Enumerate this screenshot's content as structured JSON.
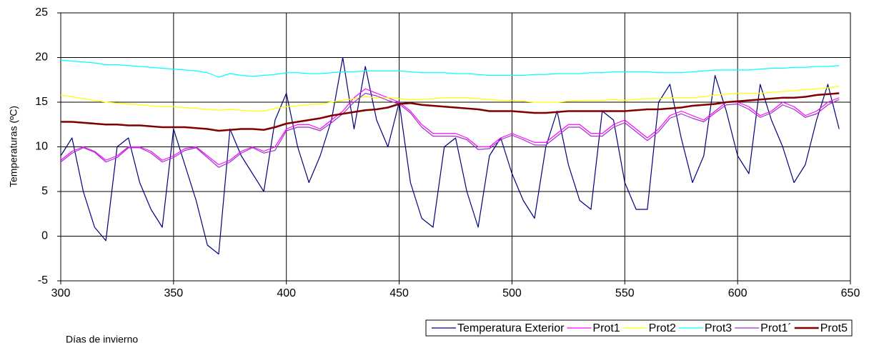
{
  "chart_data": {
    "type": "line",
    "xlabel": "Días de invierno",
    "ylabel": "Temperaturas (ºC)",
    "x": [
      300,
      305,
      310,
      315,
      320,
      325,
      330,
      335,
      340,
      345,
      350,
      355,
      360,
      365,
      370,
      375,
      380,
      385,
      390,
      395,
      400,
      405,
      410,
      415,
      420,
      425,
      430,
      435,
      440,
      445,
      450,
      455,
      460,
      465,
      470,
      475,
      480,
      485,
      490,
      495,
      500,
      505,
      510,
      515,
      520,
      525,
      530,
      535,
      540,
      545,
      550,
      555,
      560,
      565,
      570,
      575,
      580,
      585,
      590,
      595,
      600,
      605,
      610,
      615,
      620,
      625,
      630,
      635,
      640,
      645
    ],
    "series": [
      {
        "name": "Temperatura Exterior",
        "color": "#000080",
        "values": [
          9,
          11,
          5,
          1,
          -0.5,
          10,
          11,
          6,
          3,
          1,
          12,
          8,
          4,
          -1,
          -2,
          12,
          9,
          7,
          5,
          13,
          16,
          10,
          6,
          9,
          13,
          20,
          12,
          19,
          13,
          10,
          15,
          6,
          2,
          1,
          10,
          11,
          5,
          1,
          9,
          11,
          7,
          4,
          2,
          10,
          14,
          8,
          4,
          3,
          14,
          13,
          6,
          3,
          3,
          15,
          17,
          11,
          6,
          9,
          18,
          14,
          9,
          7,
          17,
          13,
          10,
          6,
          8,
          13,
          17,
          12
        ]
      },
      {
        "name": "Prot1",
        "color": "#ff00ff",
        "values": [
          8.5,
          9.5,
          10,
          9.5,
          8.5,
          9,
          10,
          10,
          9.5,
          8.5,
          9,
          9.8,
          10,
          9,
          8,
          8.5,
          9.5,
          10,
          9.5,
          10,
          12,
          12.5,
          12.5,
          12,
          13,
          14,
          15.5,
          16.5,
          16,
          15.5,
          15,
          14,
          12.5,
          11.5,
          11.5,
          11.5,
          11,
          10,
          10,
          11,
          11.5,
          11,
          10.5,
          10.5,
          11.5,
          12.5,
          12.5,
          11.5,
          11.5,
          12.5,
          13,
          12,
          11,
          12,
          13.5,
          14,
          13.5,
          13,
          14,
          15,
          15,
          14.5,
          13.5,
          14,
          15,
          14.5,
          13.5,
          14,
          15,
          15.5
        ]
      },
      {
        "name": "Prot2",
        "color": "#ffff00",
        "values": [
          15.8,
          15.6,
          15.4,
          15.2,
          15.0,
          14.9,
          14.8,
          14.7,
          14.6,
          14.5,
          14.5,
          14.4,
          14.3,
          14.2,
          14.1,
          14.2,
          14.1,
          14.0,
          14.0,
          14.3,
          14.5,
          14.6,
          14.7,
          14.8,
          15.0,
          15.2,
          15.4,
          15.6,
          15.5,
          15.5,
          15.4,
          15.3,
          15.3,
          15.4,
          15.5,
          15.5,
          15.5,
          15.4,
          15.3,
          15.2,
          15.2,
          15.1,
          15.0,
          15.0,
          15.0,
          15.1,
          15.2,
          15.2,
          15.2,
          15.3,
          15.2,
          15.3,
          15.4,
          15.4,
          15.5,
          15.5,
          15.5,
          15.6,
          15.8,
          15.9,
          16.0,
          16.0,
          16.0,
          16.1,
          16.2,
          16.3,
          16.4,
          16.5,
          16.6,
          16.8
        ]
      },
      {
        "name": "Prot3",
        "color": "#00ffff",
        "values": [
          19.7,
          19.6,
          19.5,
          19.4,
          19.2,
          19.2,
          19.1,
          19.0,
          18.9,
          18.8,
          18.7,
          18.6,
          18.5,
          18.3,
          17.8,
          18.2,
          18.0,
          17.9,
          18.0,
          18.1,
          18.3,
          18.3,
          18.2,
          18.2,
          18.3,
          18.4,
          18.4,
          18.5,
          18.5,
          18.5,
          18.5,
          18.4,
          18.3,
          18.3,
          18.3,
          18.2,
          18.2,
          18.1,
          18.0,
          18.0,
          18.0,
          18.0,
          18.1,
          18.1,
          18.2,
          18.2,
          18.2,
          18.3,
          18.3,
          18.4,
          18.4,
          18.4,
          18.4,
          18.3,
          18.3,
          18.3,
          18.4,
          18.5,
          18.6,
          18.6,
          18.6,
          18.6,
          18.7,
          18.8,
          18.8,
          18.9,
          18.9,
          19.0,
          19.0,
          19.1
        ]
      },
      {
        "name": "Prot1´",
        "color": "#9933cc",
        "values": [
          8.3,
          9.3,
          9.9,
          9.4,
          8.3,
          8.8,
          9.9,
          9.9,
          9.3,
          8.3,
          8.8,
          9.6,
          9.9,
          8.8,
          7.7,
          8.3,
          9.3,
          9.9,
          9.3,
          9.6,
          11.8,
          12.2,
          12.2,
          11.8,
          12.7,
          13.7,
          15.0,
          16.0,
          15.7,
          15.2,
          14.8,
          13.8,
          12.2,
          11.2,
          11.2,
          11.2,
          10.8,
          9.7,
          9.8,
          10.8,
          11.3,
          10.8,
          10.2,
          10.2,
          11.2,
          12.2,
          12.2,
          11.2,
          11.2,
          12.2,
          12.7,
          11.7,
          10.7,
          11.7,
          13.2,
          13.7,
          13.2,
          12.8,
          13.8,
          14.7,
          14.8,
          14.2,
          13.3,
          13.8,
          14.7,
          14.2,
          13.3,
          13.7,
          14.7,
          15.3
        ]
      },
      {
        "name": "Prot5",
        "color": "#800000",
        "values": [
          12.8,
          12.8,
          12.7,
          12.6,
          12.5,
          12.5,
          12.4,
          12.4,
          12.3,
          12.2,
          12.2,
          12.2,
          12.1,
          12.0,
          11.8,
          11.9,
          12.0,
          12.0,
          11.9,
          12.2,
          12.6,
          12.8,
          13.0,
          13.2,
          13.5,
          13.7,
          13.9,
          14.1,
          14.2,
          14.4,
          14.8,
          14.9,
          14.7,
          14.6,
          14.5,
          14.4,
          14.3,
          14.2,
          14.0,
          14.0,
          14.0,
          13.9,
          13.8,
          13.8,
          13.9,
          14.0,
          14.0,
          14.0,
          14.0,
          14.0,
          14.0,
          14.1,
          14.2,
          14.2,
          14.3,
          14.4,
          14.6,
          14.7,
          14.8,
          15.0,
          15.1,
          15.2,
          15.3,
          15.4,
          15.5,
          15.5,
          15.6,
          15.8,
          15.9,
          16.0
        ]
      }
    ],
    "xlim": [
      300,
      650
    ],
    "xticks": [
      300,
      350,
      400,
      450,
      500,
      550,
      600,
      650
    ],
    "ylim": [
      -5,
      25
    ],
    "yticks": [
      -5,
      0,
      5,
      10,
      15,
      20,
      25
    ],
    "grid": true,
    "legend": "bottom-right"
  }
}
